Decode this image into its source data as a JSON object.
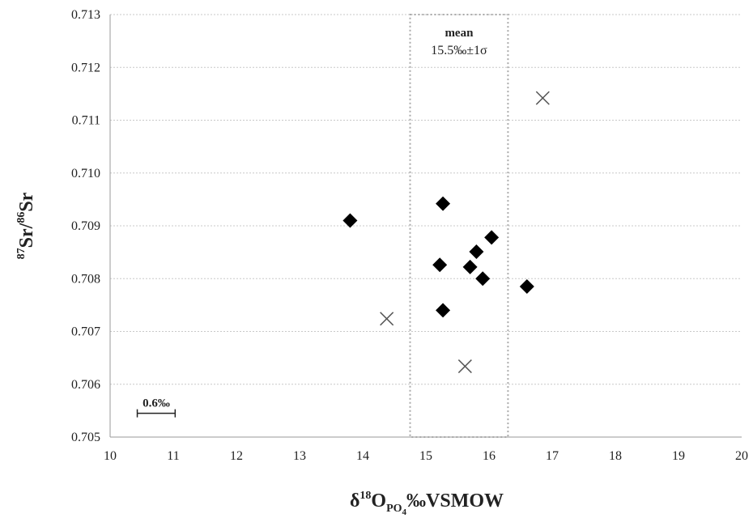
{
  "chart_data": {
    "type": "scatter",
    "xlabel": {
      "prefix": "δ",
      "sup": "18",
      "main": "O",
      "sub": "PO",
      "subsub": "4",
      "suffix": "‰VSMOW"
    },
    "ylabel": {
      "sup1": "87",
      "mid": "Sr/",
      "sup2": "86",
      "end": "Sr"
    },
    "xlim": [
      10,
      20
    ],
    "ylim": [
      0.705,
      0.713
    ],
    "xticks": [
      "10",
      "11",
      "12",
      "13",
      "14",
      "15",
      "16",
      "17",
      "18",
      "19",
      "20"
    ],
    "yticks": [
      "0.705",
      "0.706",
      "0.707",
      "0.708",
      "0.709",
      "0.710",
      "0.711",
      "0.712",
      "0.713"
    ],
    "grid": "horizontal-dotted",
    "series": [
      {
        "marker": "diamond",
        "color": "#000000",
        "points": [
          {
            "x": 13.8,
            "y": 0.7091
          },
          {
            "x": 15.27,
            "y": 0.70942
          },
          {
            "x": 15.22,
            "y": 0.70826
          },
          {
            "x": 15.27,
            "y": 0.7074
          },
          {
            "x": 15.7,
            "y": 0.70822
          },
          {
            "x": 15.8,
            "y": 0.70851
          },
          {
            "x": 15.9,
            "y": 0.708
          },
          {
            "x": 16.04,
            "y": 0.70878
          },
          {
            "x": 16.6,
            "y": 0.70785
          }
        ]
      },
      {
        "marker": "cross",
        "color": "#555555",
        "points": [
          {
            "x": 14.38,
            "y": 0.70724
          },
          {
            "x": 15.62,
            "y": 0.70634
          },
          {
            "x": 16.85,
            "y": 0.71142
          }
        ]
      }
    ],
    "mean_box": {
      "label": "mean",
      "value": "15.5‰±1σ",
      "x_from": 14.75,
      "x_to": 16.3
    },
    "scale_bar": {
      "label": "0.6‰",
      "x_from": 10.43,
      "x_to": 11.03,
      "y": 0.70545
    }
  }
}
